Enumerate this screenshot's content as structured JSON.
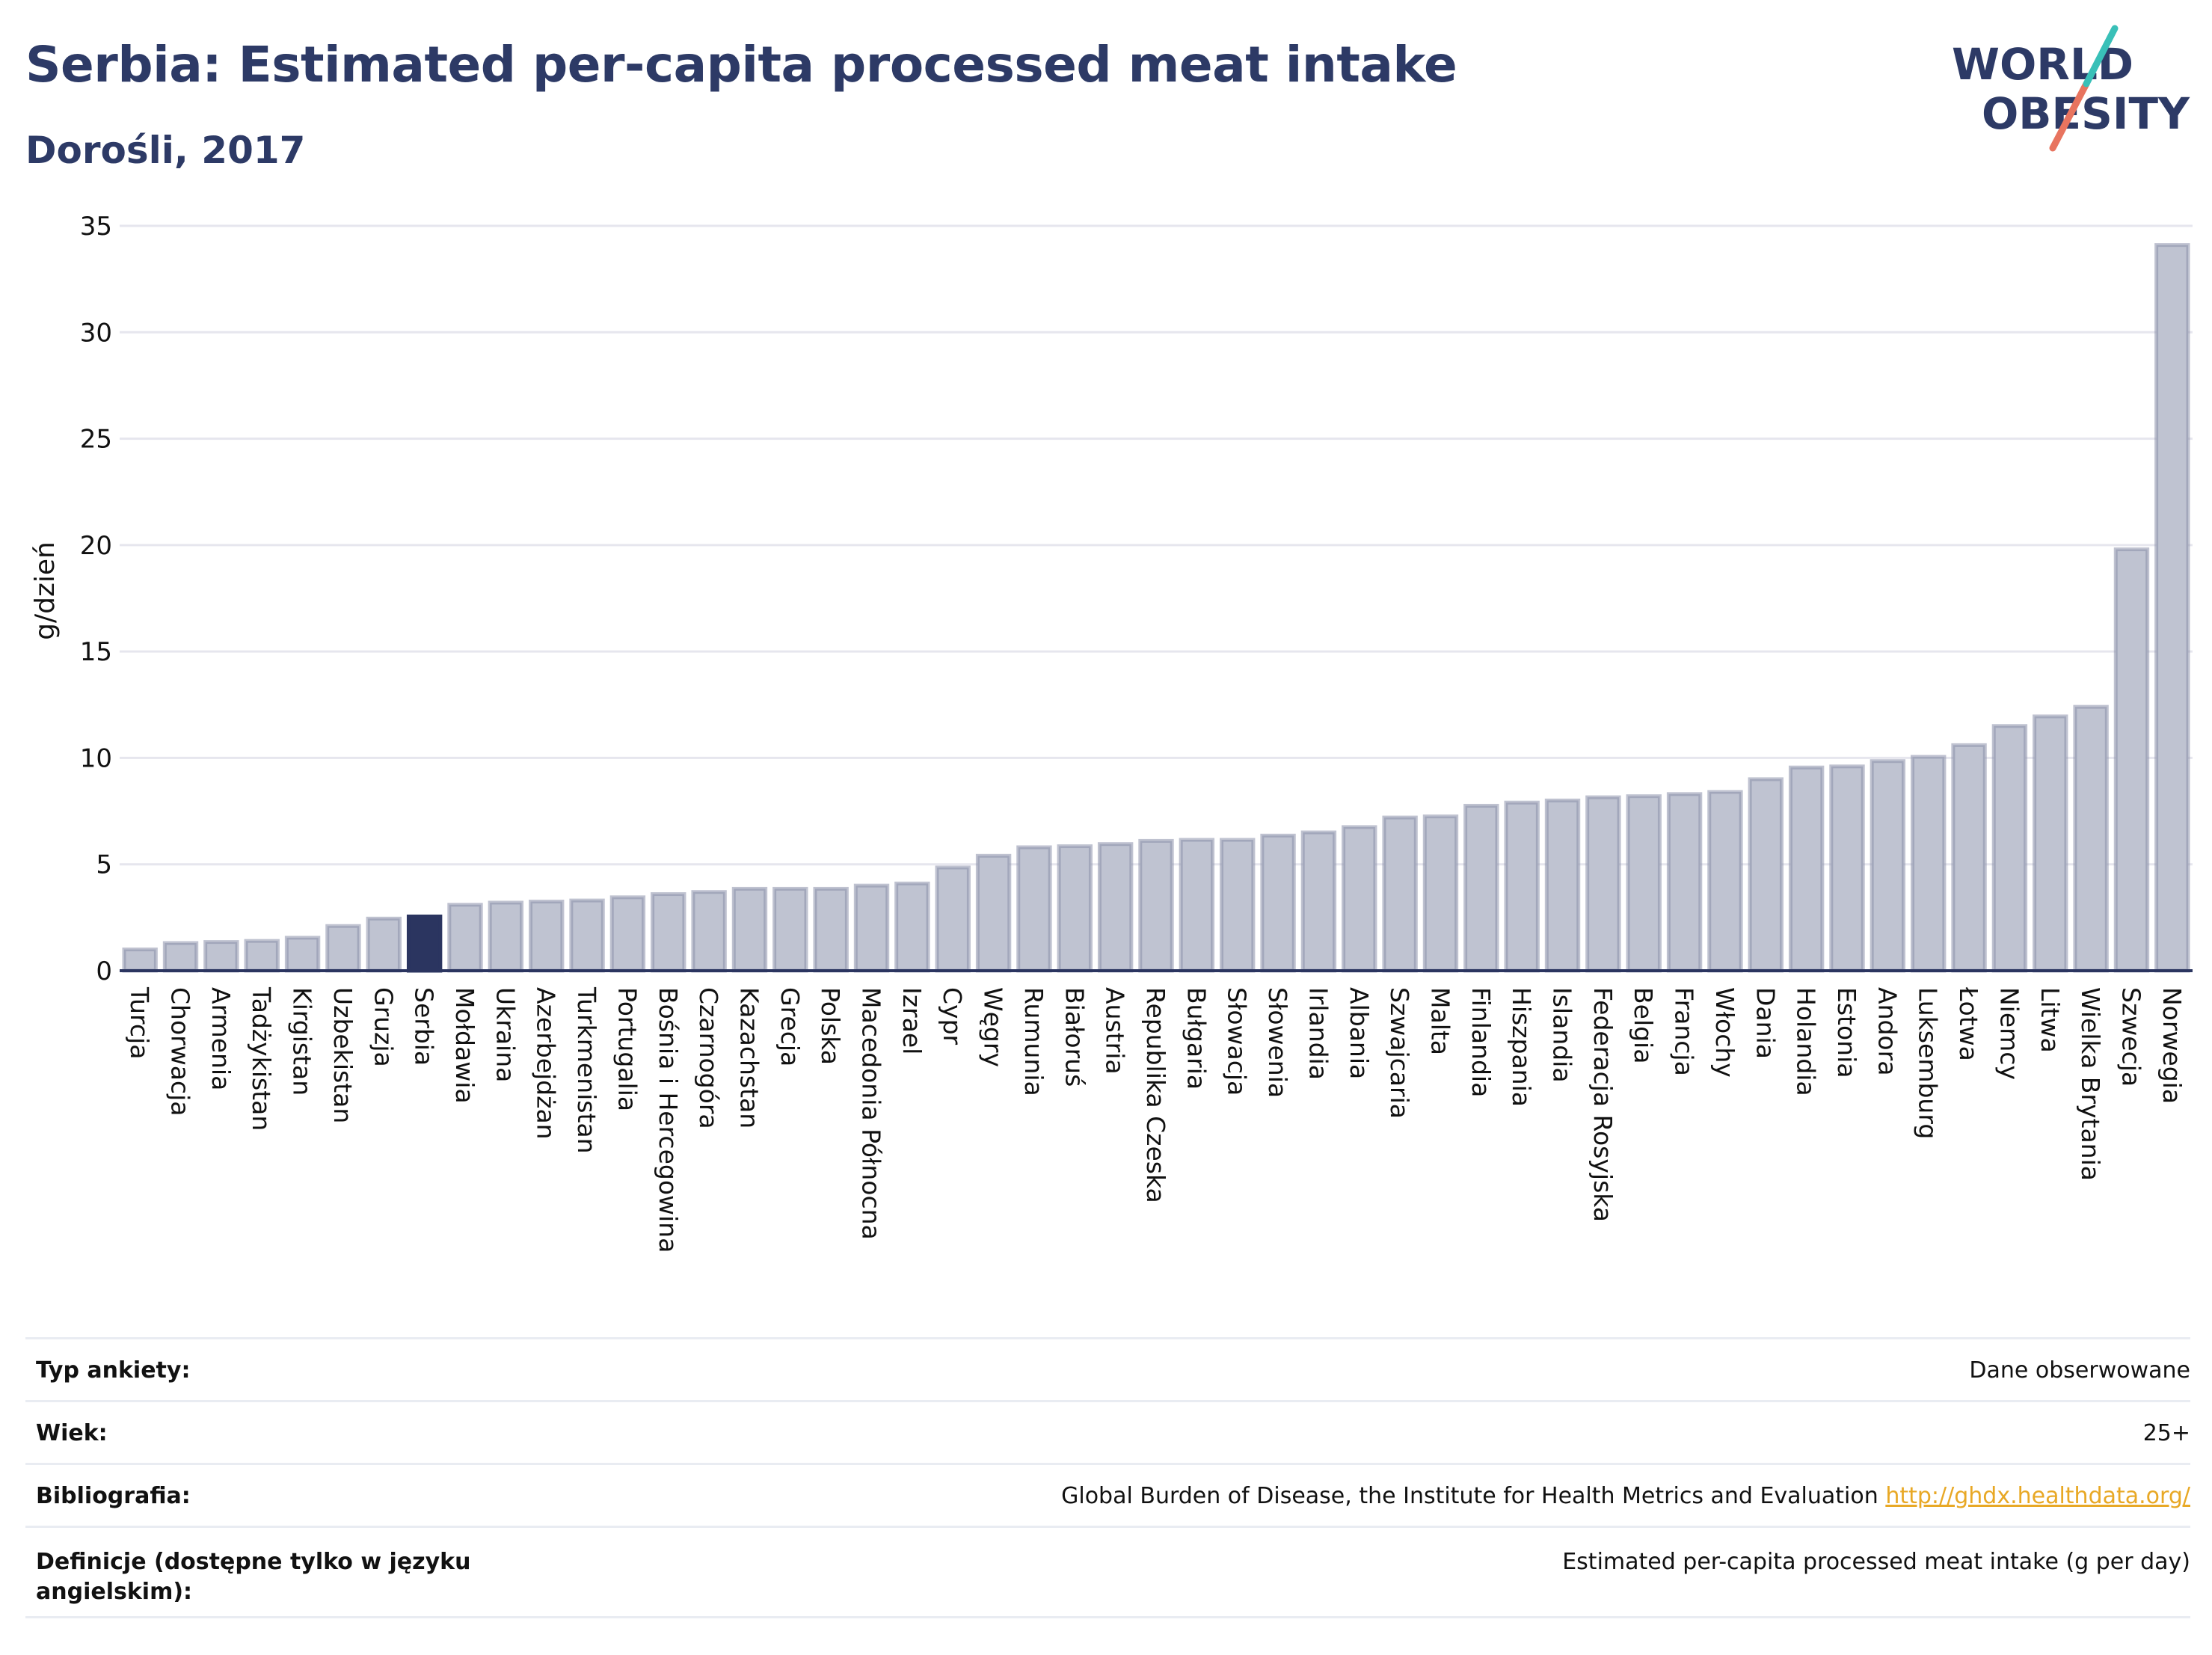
{
  "header": {
    "title": "Serbia: Estimated per-capita processed meat intake",
    "subtitle": "Dorośli, 2017"
  },
  "logo": {
    "line1": "WORLD",
    "line2": "OBESITY"
  },
  "colors": {
    "bar": "#bfc3d1",
    "bar_border": "#8a90aa",
    "highlight": "#2b3560",
    "grid": "#e6e6ee",
    "axis": "#2b3560"
  },
  "chart_data": {
    "type": "bar",
    "ylabel": "g/dzień",
    "ylim": [
      0,
      35
    ],
    "yticks": [
      0,
      5,
      10,
      15,
      20,
      25,
      30,
      35
    ],
    "grid": true,
    "highlight": "Serbia",
    "categories": [
      "Turcja",
      "Chorwacja",
      "Armenia",
      "Tadżykistan",
      "Kirgistan",
      "Uzbekistan",
      "Gruzja",
      "Serbia",
      "Mołdawia",
      "Ukraina",
      "Azerbejdżan",
      "Turkmenistan",
      "Portugalia",
      "Bośnia i Hercegowina",
      "Czarnogóra",
      "Kazachstan",
      "Grecja",
      "Polska",
      "Macedonia Północna",
      "Izrael",
      "Cypr",
      "Węgry",
      "Rumunia",
      "Białoruś",
      "Austria",
      "Republika Czeska",
      "Bułgaria",
      "Słowacja",
      "Słowenia",
      "Irlandia",
      "Albania",
      "Szwajcaria",
      "Malta",
      "Finlandia",
      "Hiszpania",
      "Islandia",
      "Federacja Rosyjska",
      "Belgia",
      "Francja",
      "Włochy",
      "Dania",
      "Holandia",
      "Estonia",
      "Andora",
      "Luksemburg",
      "Łotwa",
      "Niemcy",
      "Litwa",
      "Wielka Brytania",
      "Szwecja",
      "Norwegia"
    ],
    "values": [
      1.0,
      1.3,
      1.35,
      1.4,
      1.55,
      2.1,
      2.45,
      2.55,
      3.1,
      3.2,
      3.25,
      3.3,
      3.45,
      3.6,
      3.7,
      3.85,
      3.85,
      3.85,
      4.0,
      4.1,
      4.85,
      5.4,
      5.8,
      5.85,
      5.95,
      6.1,
      6.15,
      6.15,
      6.35,
      6.5,
      6.75,
      7.2,
      7.25,
      7.75,
      7.9,
      8.0,
      8.15,
      8.2,
      8.3,
      8.4,
      9.0,
      9.55,
      9.6,
      9.85,
      10.05,
      10.6,
      11.5,
      11.95,
      12.4,
      19.8,
      34.1
    ]
  },
  "info": {
    "rows": [
      {
        "key": "Typ ankiety:",
        "value": "Dane obserwowane"
      },
      {
        "key": "Wiek:",
        "value": "25+"
      },
      {
        "key": "Bibliografia:",
        "value": "Global Burden of Disease, the Institute for Health Metrics and Evaluation",
        "link": "http://ghdx.healthdata.org/"
      },
      {
        "key": "Definicje (dostępne tylko w języku angielskim):",
        "value": "Estimated per-capita processed meat intake (g per day)"
      }
    ]
  }
}
